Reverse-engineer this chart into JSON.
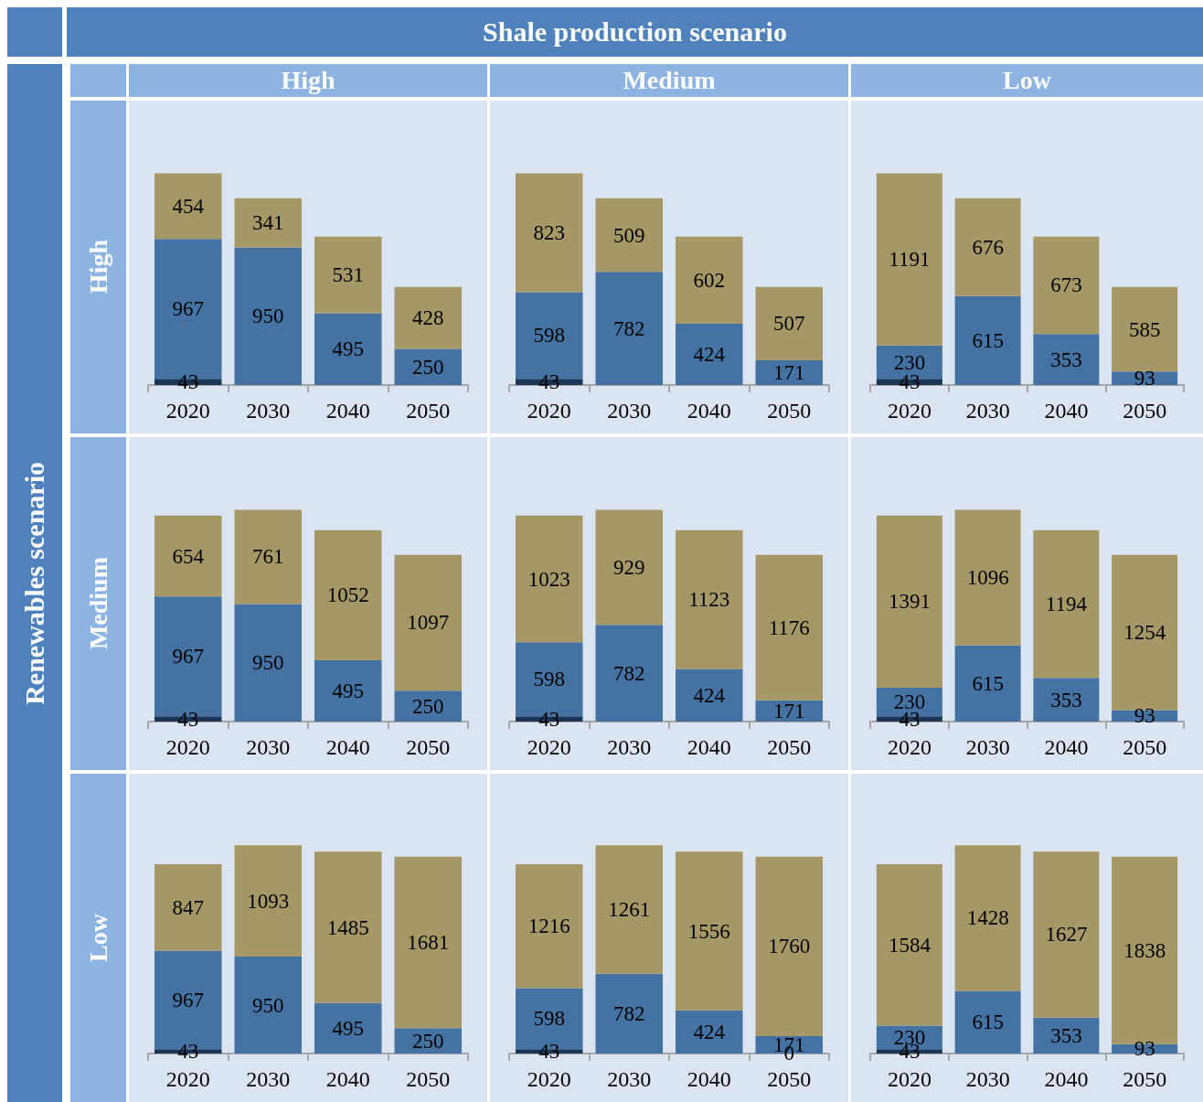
{
  "chart_data": [
    {
      "type": "bar",
      "stacked": true,
      "data_labels": true,
      "title": "High",
      "ylabel": "High",
      "annotations": [
        "Shale production scenario",
        "Renewables scenario"
      ],
      "categories": [
        "2020",
        "2030",
        "2040",
        "2050"
      ],
      "series": [
        {
          "color": "#1b3654",
          "values": [
            43,
            null,
            null,
            null
          ]
        },
        {
          "color": "#4472a2",
          "values": [
            967,
            950,
            495,
            250
          ]
        },
        {
          "color": "#a59866",
          "values": [
            454,
            341,
            531,
            428
          ]
        }
      ]
    },
    {
      "type": "bar",
      "stacked": true,
      "data_labels": true,
      "title": "Medium",
      "categories": [
        "2020",
        "2030",
        "2040",
        "2050"
      ],
      "series": [
        {
          "color": "#1b3654",
          "values": [
            43,
            null,
            null,
            null
          ]
        },
        {
          "color": "#4472a2",
          "values": [
            598,
            782,
            424,
            171
          ]
        },
        {
          "color": "#a59866",
          "values": [
            823,
            509,
            602,
            507
          ]
        }
      ]
    },
    {
      "type": "bar",
      "stacked": true,
      "data_labels": true,
      "title": "Low",
      "categories": [
        "2020",
        "2030",
        "2040",
        "2050"
      ],
      "series": [
        {
          "color": "#1b3654",
          "values": [
            43,
            null,
            null,
            null
          ]
        },
        {
          "color": "#4472a2",
          "values": [
            230,
            615,
            353,
            93
          ]
        },
        {
          "color": "#a59866",
          "values": [
            1191,
            676,
            673,
            585
          ]
        }
      ]
    },
    {
      "type": "bar",
      "stacked": true,
      "data_labels": true,
      "ylabel": "Medium",
      "categories": [
        "2020",
        "2030",
        "2040",
        "2050"
      ],
      "series": [
        {
          "color": "#1b3654",
          "values": [
            43,
            null,
            null,
            null
          ]
        },
        {
          "color": "#4472a2",
          "values": [
            967,
            950,
            495,
            250
          ]
        },
        {
          "color": "#a59866",
          "values": [
            654,
            761,
            1052,
            1097
          ]
        }
      ]
    },
    {
      "type": "bar",
      "stacked": true,
      "data_labels": true,
      "categories": [
        "2020",
        "2030",
        "2040",
        "2050"
      ],
      "series": [
        {
          "color": "#1b3654",
          "values": [
            43,
            null,
            null,
            null
          ]
        },
        {
          "color": "#4472a2",
          "values": [
            598,
            782,
            424,
            171
          ]
        },
        {
          "color": "#a59866",
          "values": [
            1023,
            929,
            1123,
            1176
          ]
        }
      ]
    },
    {
      "type": "bar",
      "stacked": true,
      "data_labels": true,
      "categories": [
        "2020",
        "2030",
        "2040",
        "2050"
      ],
      "series": [
        {
          "color": "#1b3654",
          "values": [
            43,
            null,
            null,
            null
          ]
        },
        {
          "color": "#4472a2",
          "values": [
            230,
            615,
            353,
            93
          ]
        },
        {
          "color": "#a59866",
          "values": [
            1391,
            1096,
            1194,
            1254
          ]
        }
      ]
    },
    {
      "type": "bar",
      "stacked": true,
      "data_labels": true,
      "ylabel": "Low",
      "categories": [
        "2020",
        "2030",
        "2040",
        "2050"
      ],
      "series": [
        {
          "color": "#1b3654",
          "values": [
            43,
            null,
            null,
            null
          ]
        },
        {
          "color": "#4472a2",
          "values": [
            967,
            950,
            495,
            250
          ]
        },
        {
          "color": "#a59866",
          "values": [
            847,
            1093,
            1485,
            1681
          ]
        }
      ]
    },
    {
      "type": "bar",
      "stacked": true,
      "data_labels": true,
      "categories": [
        "2020",
        "2030",
        "2040",
        "2050"
      ],
      "series": [
        {
          "color": "#1b3654",
          "values": [
            43,
            null,
            null,
            0
          ]
        },
        {
          "color": "#4472a2",
          "values": [
            598,
            782,
            424,
            171
          ]
        },
        {
          "color": "#a59866",
          "values": [
            1216,
            1261,
            1556,
            1760
          ]
        }
      ]
    },
    {
      "type": "bar",
      "stacked": true,
      "data_labels": true,
      "categories": [
        "2020",
        "2030",
        "2040",
        "2050"
      ],
      "series": [
        {
          "color": "#1b3654",
          "values": [
            43,
            null,
            null,
            null
          ]
        },
        {
          "color": "#4472a2",
          "values": [
            230,
            615,
            353,
            93
          ]
        },
        {
          "color": "#a59866",
          "values": [
            1584,
            1428,
            1627,
            1838
          ]
        }
      ]
    }
  ]
}
